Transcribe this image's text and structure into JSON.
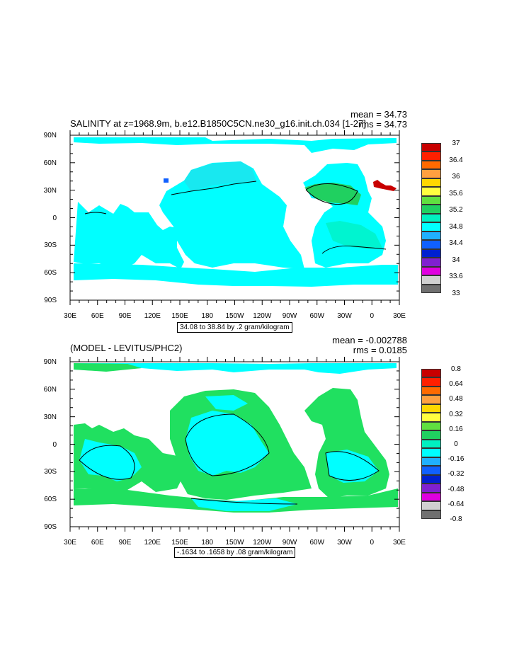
{
  "panel1": {
    "title": "SALINITY at z=1968.9m, b.e12.B1850C5CN.ne30_g16.init.ch.034 [1-27]",
    "mean": "mean = 34.73",
    "rms": "rms = 34.73",
    "info": "34.08 to 38.84 by .2 gram/kilogram",
    "legend": {
      "labels": [
        "37",
        "36.4",
        "36",
        "35.6",
        "35.2",
        "34.8",
        "34.4",
        "34",
        "33.6",
        "33"
      ],
      "colors": [
        "#c80000",
        "#ff2000",
        "#ff6a00",
        "#ffa040",
        "#ffd700",
        "#ffff40",
        "#60e040",
        "#20d060",
        "#00f0c0",
        "#00ffff",
        "#20b0ff",
        "#1060ff",
        "#0020d0",
        "#8020d0",
        "#e000e0",
        "#d0d0d0",
        "#707070"
      ]
    }
  },
  "panel2": {
    "title": "(MODEL - LEVITUS/PHC2)",
    "mean": "mean = -0.002788",
    "rms": "rms = 0.0185",
    "info": "-.1634 to .1658 by .08 gram/kilogram",
    "legend": {
      "labels": [
        "0.8",
        "0.64",
        "0.48",
        "0.32",
        "0.16",
        "0",
        "-0.16",
        "-0.32",
        "-0.48",
        "-0.64",
        "-0.8"
      ],
      "colors": [
        "#c80000",
        "#ff2000",
        "#ff6a00",
        "#ffa040",
        "#ffd700",
        "#ffff40",
        "#60e040",
        "#20d060",
        "#00f0c0",
        "#00ffff",
        "#20b0ff",
        "#1060ff",
        "#0020d0",
        "#8020d0",
        "#e000e0",
        "#d0d0d0",
        "#707070"
      ]
    }
  },
  "axes": {
    "lat_labels": [
      "90N",
      "60N",
      "30N",
      "0",
      "30S",
      "60S",
      "90S"
    ],
    "lon_labels": [
      "30E",
      "60E",
      "90E",
      "120E",
      "150E",
      "180",
      "150W",
      "120W",
      "90W",
      "60W",
      "30W",
      "0",
      "30E"
    ]
  },
  "colors": {
    "fill_main": "#00ffff",
    "fill_salty": "#20d060",
    "fill_diff_pos": "#20e060",
    "fill_diff_neg": "#00ffff",
    "fill_red": "#c80000",
    "fill_blue": "#1060ff"
  }
}
